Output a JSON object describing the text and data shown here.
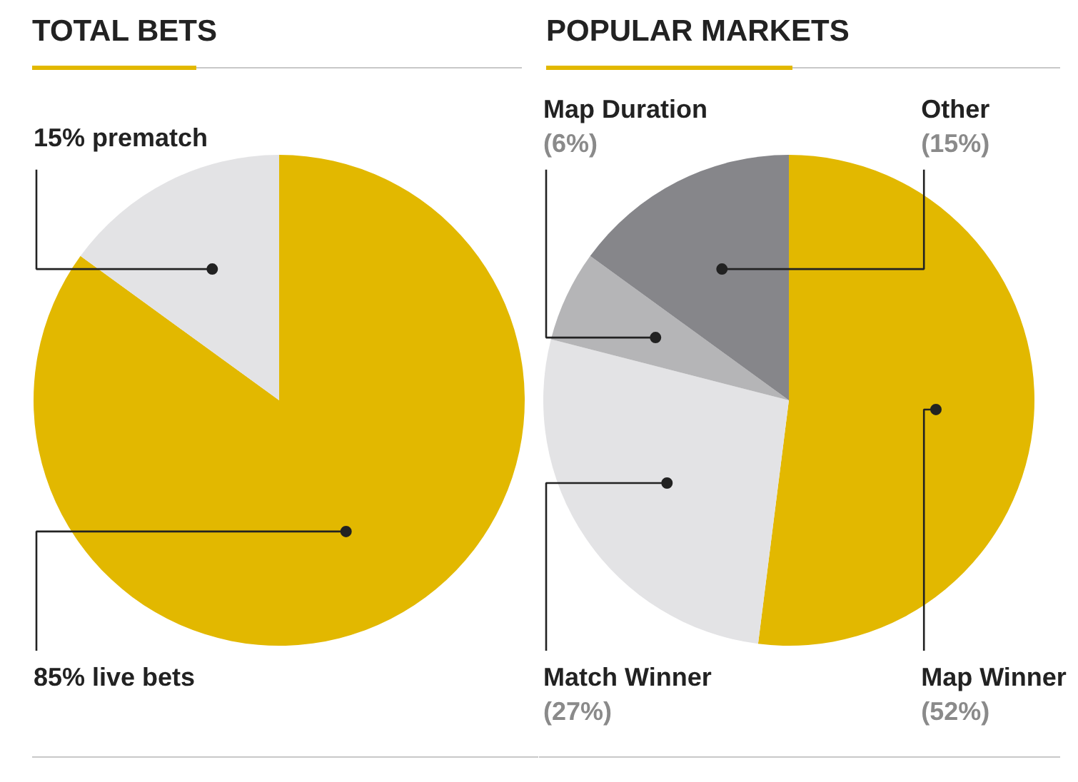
{
  "chart_data": [
    {
      "type": "pie",
      "title": "TOTAL BETS",
      "categories": [
        "85% live bets",
        "15% prematch"
      ],
      "values": [
        85,
        15
      ],
      "colors": [
        "#e2b800",
        "#e3e3e5"
      ]
    },
    {
      "type": "pie",
      "title": "POPULAR MARKETS",
      "categories": [
        "Map Winner",
        "Match Winner",
        "Map Duration",
        "Other"
      ],
      "values": [
        52,
        27,
        6,
        15
      ],
      "colors": [
        "#e2b800",
        "#e3e3e5",
        "#b5b5b7",
        "#86868a"
      ],
      "value_labels": [
        "(52%)",
        "(27%)",
        "(6%)",
        "(15%)"
      ]
    }
  ]
}
